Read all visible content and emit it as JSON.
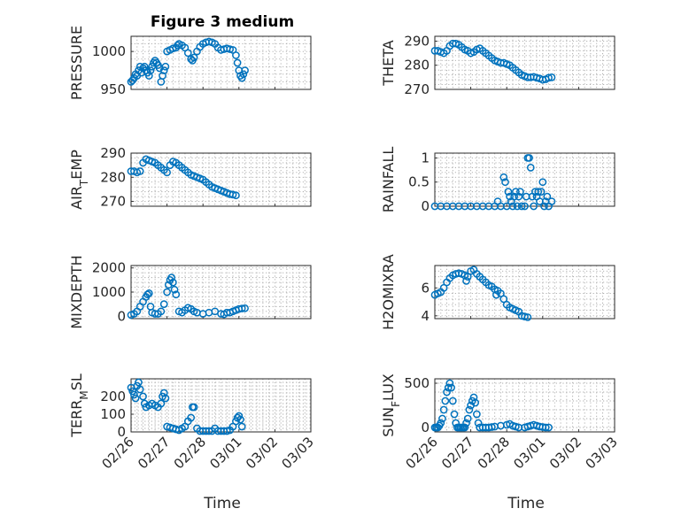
{
  "figure": {
    "title": "Figure 3 medium",
    "xlabel": "Time"
  },
  "colors": {
    "marker": "#0072bd",
    "axes": "#262626",
    "grid": "#a8a8a8"
  },
  "x_ticks": [
    "02/26",
    "02/27",
    "02/28",
    "03/01",
    "03/02",
    "03/03"
  ],
  "chart_data": [
    {
      "type": "scatter",
      "name": "PRESSURE",
      "ylabel": "PRESSURE",
      "ylim": [
        950,
        1020
      ],
      "yticks": [
        950,
        1000
      ],
      "xlim": [
        0,
        6
      ],
      "grid": true,
      "points": [
        [
          0,
          960
        ],
        [
          0.05,
          962
        ],
        [
          0.1,
          965
        ],
        [
          0.15,
          970
        ],
        [
          0.2,
          968
        ],
        [
          0.25,
          975
        ],
        [
          0.3,
          980
        ],
        [
          0.35,
          972
        ],
        [
          0.4,
          978
        ],
        [
          0.45,
          980
        ],
        [
          0.5,
          975
        ],
        [
          0.55,
          972
        ],
        [
          0.6,
          968
        ],
        [
          0.65,
          975
        ],
        [
          0.7,
          980
        ],
        [
          0.75,
          985
        ],
        [
          0.8,
          988
        ],
        [
          0.85,
          985
        ],
        [
          0.9,
          982
        ],
        [
          0.95,
          978
        ],
        [
          1,
          960
        ],
        [
          1.05,
          968
        ],
        [
          1.1,
          975
        ],
        [
          1.15,
          980
        ],
        [
          1.2,
          1000
        ],
        [
          1.3,
          1002
        ],
        [
          1.4,
          1004
        ],
        [
          1.5,
          1005
        ],
        [
          1.55,
          1008
        ],
        [
          1.6,
          1010
        ],
        [
          1.7,
          1008
        ],
        [
          1.8,
          1005
        ],
        [
          1.9,
          998
        ],
        [
          2,
          990
        ],
        [
          2.05,
          988
        ],
        [
          2.1,
          992
        ],
        [
          2.2,
          1000
        ],
        [
          2.3,
          1006
        ],
        [
          2.4,
          1010
        ],
        [
          2.5,
          1012
        ],
        [
          2.6,
          1013
        ],
        [
          2.7,
          1012
        ],
        [
          2.8,
          1010
        ],
        [
          2.9,
          1005
        ],
        [
          3,
          1002
        ],
        [
          3.1,
          1003
        ],
        [
          3.2,
          1004
        ],
        [
          3.3,
          1003
        ],
        [
          3.4,
          1002
        ],
        [
          3.5,
          995
        ],
        [
          3.55,
          985
        ],
        [
          3.6,
          975
        ],
        [
          3.65,
          968
        ],
        [
          3.7,
          965
        ],
        [
          3.75,
          970
        ],
        [
          3.8,
          975
        ]
      ]
    },
    {
      "type": "scatter",
      "name": "THETA",
      "ylabel": "THETA",
      "ylim": [
        270,
        292
      ],
      "yticks": [
        270,
        280,
        290
      ],
      "xlim": [
        0,
        6
      ],
      "grid": true,
      "points": [
        [
          0,
          286
        ],
        [
          0.1,
          286
        ],
        [
          0.2,
          285.5
        ],
        [
          0.3,
          285
        ],
        [
          0.4,
          286
        ],
        [
          0.5,
          288
        ],
        [
          0.6,
          289
        ],
        [
          0.7,
          289
        ],
        [
          0.8,
          288.5
        ],
        [
          0.9,
          287.5
        ],
        [
          1,
          286.5
        ],
        [
          1.1,
          286
        ],
        [
          1.2,
          285
        ],
        [
          1.3,
          285.5
        ],
        [
          1.4,
          286.5
        ],
        [
          1.5,
          287
        ],
        [
          1.6,
          286
        ],
        [
          1.7,
          285
        ],
        [
          1.8,
          284
        ],
        [
          1.9,
          283
        ],
        [
          2,
          282
        ],
        [
          2.1,
          281.5
        ],
        [
          2.2,
          281
        ],
        [
          2.3,
          281
        ],
        [
          2.4,
          280.5
        ],
        [
          2.5,
          280
        ],
        [
          2.6,
          279
        ],
        [
          2.7,
          278
        ],
        [
          2.8,
          277
        ],
        [
          2.9,
          276
        ],
        [
          3,
          275.5
        ],
        [
          3.1,
          275
        ],
        [
          3.2,
          275
        ],
        [
          3.3,
          275.2
        ],
        [
          3.4,
          274.8
        ],
        [
          3.5,
          274.5
        ],
        [
          3.6,
          274
        ],
        [
          3.7,
          274.2
        ],
        [
          3.8,
          274.8
        ],
        [
          3.9,
          275
        ]
      ]
    },
    {
      "type": "scatter",
      "name": "AIR_TEMP",
      "ylabel": "AIR_TEMP",
      "ylim": [
        268,
        290
      ],
      "yticks": [
        270,
        280,
        290
      ],
      "xlim": [
        0,
        6
      ],
      "grid": true,
      "points": [
        [
          0,
          282.5
        ],
        [
          0.1,
          282.5
        ],
        [
          0.2,
          282
        ],
        [
          0.3,
          282.5
        ],
        [
          0.4,
          286
        ],
        [
          0.5,
          287.5
        ],
        [
          0.6,
          287
        ],
        [
          0.7,
          286.5
        ],
        [
          0.8,
          286
        ],
        [
          0.9,
          285
        ],
        [
          1,
          284
        ],
        [
          1.1,
          283
        ],
        [
          1.2,
          282
        ],
        [
          1.3,
          285
        ],
        [
          1.4,
          286.5
        ],
        [
          1.5,
          286
        ],
        [
          1.6,
          285
        ],
        [
          1.7,
          284
        ],
        [
          1.8,
          283
        ],
        [
          1.9,
          282
        ],
        [
          2,
          281
        ],
        [
          2.1,
          280.5
        ],
        [
          2.2,
          280
        ],
        [
          2.3,
          279.5
        ],
        [
          2.4,
          279
        ],
        [
          2.5,
          278
        ],
        [
          2.6,
          277
        ],
        [
          2.7,
          276
        ],
        [
          2.8,
          275.5
        ],
        [
          2.9,
          275
        ],
        [
          3,
          274.5
        ],
        [
          3.1,
          274
        ],
        [
          3.2,
          273.5
        ],
        [
          3.3,
          273
        ],
        [
          3.4,
          272.8
        ],
        [
          3.5,
          272.5
        ]
      ]
    },
    {
      "type": "scatter",
      "name": "RAINFALL",
      "ylabel": "RAINFALL",
      "ylim": [
        0,
        1.1
      ],
      "yticks": [
        0,
        0.5,
        1
      ],
      "xlim": [
        0,
        6
      ],
      "grid": true,
      "points": [
        [
          0,
          0
        ],
        [
          0.2,
          0
        ],
        [
          0.4,
          0
        ],
        [
          0.6,
          0
        ],
        [
          0.8,
          0
        ],
        [
          1,
          0
        ],
        [
          1.2,
          0
        ],
        [
          1.4,
          0
        ],
        [
          1.6,
          0
        ],
        [
          1.8,
          0
        ],
        [
          2,
          0
        ],
        [
          2.1,
          0.1
        ],
        [
          2.2,
          0
        ],
        [
          2.3,
          0.6
        ],
        [
          2.35,
          0.5
        ],
        [
          2.4,
          0
        ],
        [
          2.45,
          0.3
        ],
        [
          2.5,
          0.2
        ],
        [
          2.55,
          0.1
        ],
        [
          2.6,
          0
        ],
        [
          2.65,
          0.2
        ],
        [
          2.7,
          0.3
        ],
        [
          2.75,
          0
        ],
        [
          2.8,
          0.2
        ],
        [
          2.85,
          0.3
        ],
        [
          2.9,
          0
        ],
        [
          3,
          0
        ],
        [
          3.05,
          0.2
        ],
        [
          3.1,
          1
        ],
        [
          3.15,
          1
        ],
        [
          3.2,
          0.8
        ],
        [
          3.25,
          0.2
        ],
        [
          3.3,
          0
        ],
        [
          3.35,
          0.3
        ],
        [
          3.4,
          0.2
        ],
        [
          3.45,
          0.3
        ],
        [
          3.5,
          0.1
        ],
        [
          3.55,
          0.3
        ],
        [
          3.6,
          0.5
        ],
        [
          3.65,
          0
        ],
        [
          3.7,
          0.1
        ],
        [
          3.75,
          0.2
        ],
        [
          3.8,
          0
        ],
        [
          3.9,
          0.1
        ]
      ]
    },
    {
      "type": "scatter",
      "name": "MIXDEPTH",
      "ylabel": "MIXDEPTH",
      "ylim": [
        -100,
        2100
      ],
      "yticks": [
        0,
        1000,
        2000
      ],
      "xlim": [
        0,
        6
      ],
      "grid": true,
      "points": [
        [
          0,
          50
        ],
        [
          0.1,
          100
        ],
        [
          0.2,
          200
        ],
        [
          0.3,
          400
        ],
        [
          0.4,
          600
        ],
        [
          0.5,
          800
        ],
        [
          0.55,
          900
        ],
        [
          0.6,
          950
        ],
        [
          0.65,
          400
        ],
        [
          0.7,
          150
        ],
        [
          0.8,
          100
        ],
        [
          0.9,
          100
        ],
        [
          1,
          200
        ],
        [
          1.1,
          500
        ],
        [
          1.2,
          1000
        ],
        [
          1.25,
          1300
        ],
        [
          1.3,
          1500
        ],
        [
          1.35,
          1600
        ],
        [
          1.4,
          1400
        ],
        [
          1.45,
          1100
        ],
        [
          1.5,
          900
        ],
        [
          1.6,
          200
        ],
        [
          1.7,
          150
        ],
        [
          1.8,
          250
        ],
        [
          1.9,
          350
        ],
        [
          2,
          300
        ],
        [
          2.1,
          200
        ],
        [
          2.2,
          150
        ],
        [
          2.4,
          100
        ],
        [
          2.6,
          150
        ],
        [
          2.8,
          200
        ],
        [
          3,
          100
        ],
        [
          3.1,
          80
        ],
        [
          3.2,
          150
        ],
        [
          3.3,
          150
        ],
        [
          3.4,
          200
        ],
        [
          3.5,
          250
        ],
        [
          3.6,
          300
        ],
        [
          3.7,
          320
        ],
        [
          3.8,
          330
        ]
      ]
    },
    {
      "type": "scatter",
      "name": "H2OMIXRA",
      "ylabel": "H2OMIXRA",
      "ylim": [
        3.8,
        7.6
      ],
      "yticks": [
        4,
        6
      ],
      "xlim": [
        0,
        6
      ],
      "grid": true,
      "points": [
        [
          0,
          5.5
        ],
        [
          0.1,
          5.6
        ],
        [
          0.2,
          5.7
        ],
        [
          0.3,
          6
        ],
        [
          0.4,
          6.4
        ],
        [
          0.5,
          6.7
        ],
        [
          0.6,
          6.9
        ],
        [
          0.7,
          7
        ],
        [
          0.8,
          7.05
        ],
        [
          0.9,
          7
        ],
        [
          1,
          6.9
        ],
        [
          1.05,
          6.5
        ],
        [
          1.1,
          6.8
        ],
        [
          1.2,
          7.2
        ],
        [
          1.3,
          7.3
        ],
        [
          1.4,
          7
        ],
        [
          1.5,
          6.8
        ],
        [
          1.6,
          6.6
        ],
        [
          1.7,
          6.4
        ],
        [
          1.8,
          6.2
        ],
        [
          1.9,
          6.1
        ],
        [
          2,
          5.9
        ],
        [
          2.05,
          5.5
        ],
        [
          2.1,
          5.8
        ],
        [
          2.2,
          5.6
        ],
        [
          2.3,
          5.2
        ],
        [
          2.4,
          4.8
        ],
        [
          2.5,
          4.6
        ],
        [
          2.6,
          4.5
        ],
        [
          2.7,
          4.4
        ],
        [
          2.8,
          4.3
        ],
        [
          2.9,
          4
        ],
        [
          3,
          3.95
        ],
        [
          3.1,
          3.9
        ]
      ]
    },
    {
      "type": "scatter",
      "name": "TERR_MSL",
      "ylabel": "TERR_MSL",
      "ylim": [
        0,
        300
      ],
      "yticks": [
        0,
        100,
        200
      ],
      "xlim": [
        0,
        6
      ],
      "grid": true,
      "points": [
        [
          0,
          250
        ],
        [
          0.05,
          230
        ],
        [
          0.1,
          210
        ],
        [
          0.15,
          190
        ],
        [
          0.2,
          260
        ],
        [
          0.25,
          280
        ],
        [
          0.3,
          240
        ],
        [
          0.4,
          200
        ],
        [
          0.45,
          160
        ],
        [
          0.5,
          140
        ],
        [
          0.6,
          150
        ],
        [
          0.7,
          160
        ],
        [
          0.8,
          150
        ],
        [
          0.9,
          140
        ],
        [
          1,
          160
        ],
        [
          1.05,
          200
        ],
        [
          1.1,
          220
        ],
        [
          1.15,
          190
        ],
        [
          1.2,
          30
        ],
        [
          1.3,
          25
        ],
        [
          1.4,
          20
        ],
        [
          1.5,
          15
        ],
        [
          1.6,
          10
        ],
        [
          1.7,
          20
        ],
        [
          1.8,
          30
        ],
        [
          1.9,
          60
        ],
        [
          2,
          80
        ],
        [
          2.05,
          140
        ],
        [
          2.1,
          140
        ],
        [
          2.2,
          20
        ],
        [
          2.3,
          5
        ],
        [
          2.4,
          5
        ],
        [
          2.5,
          5
        ],
        [
          2.6,
          5
        ],
        [
          2.7,
          5
        ],
        [
          2.8,
          20
        ],
        [
          2.9,
          5
        ],
        [
          3,
          5
        ],
        [
          3.1,
          5
        ],
        [
          3.2,
          5
        ],
        [
          3.3,
          10
        ],
        [
          3.4,
          30
        ],
        [
          3.5,
          60
        ],
        [
          3.55,
          80
        ],
        [
          3.6,
          90
        ],
        [
          3.65,
          70
        ],
        [
          3.7,
          30
        ]
      ]
    },
    {
      "type": "scatter",
      "name": "SUN_FLUX",
      "ylabel": "SUN_FLUX",
      "ylim": [
        -50,
        550
      ],
      "yticks": [
        0,
        500
      ],
      "xlim": [
        0,
        6
      ],
      "grid": true,
      "points": [
        [
          0,
          0
        ],
        [
          0.05,
          0
        ],
        [
          0.1,
          0
        ],
        [
          0.15,
          20
        ],
        [
          0.2,
          50
        ],
        [
          0.25,
          100
        ],
        [
          0.3,
          200
        ],
        [
          0.35,
          300
        ],
        [
          0.4,
          400
        ],
        [
          0.45,
          450
        ],
        [
          0.5,
          500
        ],
        [
          0.55,
          450
        ],
        [
          0.6,
          300
        ],
        [
          0.65,
          150
        ],
        [
          0.7,
          50
        ],
        [
          0.75,
          0
        ],
        [
          0.8,
          0
        ],
        [
          0.85,
          0
        ],
        [
          0.9,
          0
        ],
        [
          0.95,
          0
        ],
        [
          1,
          0
        ],
        [
          1.05,
          50
        ],
        [
          1.1,
          100
        ],
        [
          1.15,
          200
        ],
        [
          1.2,
          250
        ],
        [
          1.25,
          300
        ],
        [
          1.3,
          340
        ],
        [
          1.35,
          280
        ],
        [
          1.4,
          150
        ],
        [
          1.45,
          50
        ],
        [
          1.5,
          0
        ],
        [
          1.6,
          0
        ],
        [
          1.7,
          0
        ],
        [
          1.8,
          0
        ],
        [
          1.9,
          5
        ],
        [
          2,
          10
        ],
        [
          2.2,
          20
        ],
        [
          2.4,
          30
        ],
        [
          2.5,
          40
        ],
        [
          2.6,
          20
        ],
        [
          2.7,
          10
        ],
        [
          2.8,
          0
        ],
        [
          3,
          0
        ],
        [
          3.1,
          10
        ],
        [
          3.2,
          20
        ],
        [
          3.3,
          30
        ],
        [
          3.4,
          20
        ],
        [
          3.5,
          10
        ],
        [
          3.6,
          5
        ],
        [
          3.7,
          0
        ],
        [
          3.8,
          0
        ]
      ]
    }
  ]
}
